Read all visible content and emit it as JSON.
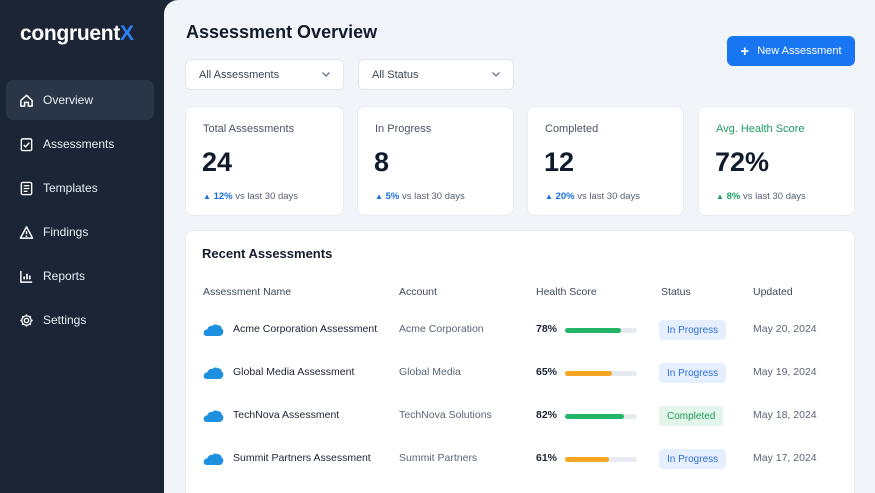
{
  "app": {
    "logo_text": "congruent",
    "logo_accent": "X"
  },
  "sidebar": {
    "items": [
      {
        "label": "Overview",
        "icon": "home-icon",
        "active": true
      },
      {
        "label": "Assessments",
        "icon": "clipboard-check-icon",
        "active": false
      },
      {
        "label": "Templates",
        "icon": "document-icon",
        "active": false
      },
      {
        "label": "Findings",
        "icon": "warning-icon",
        "active": false
      },
      {
        "label": "Reports",
        "icon": "chart-icon",
        "active": false
      },
      {
        "label": "Settings",
        "icon": "gear-icon",
        "active": false
      }
    ]
  },
  "header": {
    "title": "Assessment Overview",
    "new_button_label": "New Assessment"
  },
  "filters": {
    "assessments": "All Assessments",
    "status": "All Status"
  },
  "stats": [
    {
      "label": "Total Assessments",
      "value": "24",
      "delta": "12%",
      "delta_text": "vs last 30 days"
    },
    {
      "label": "In Progress",
      "value": "8",
      "delta": "5%",
      "delta_text": "vs last 30 days"
    },
    {
      "label": "Completed",
      "value": "12",
      "delta": "20%",
      "delta_text": "vs last 30 days"
    },
    {
      "label": "Avg. Health Score",
      "value": "72%",
      "delta": "8%",
      "delta_text": "vs last 30 days"
    }
  ],
  "recent": {
    "title": "Recent Assessments",
    "columns": [
      "Assessment Name",
      "Account",
      "Health Score",
      "Status",
      "Updated"
    ],
    "rows": [
      {
        "name": "Acme Corporation Assessment",
        "account": "Acme Corporation",
        "score": "78%",
        "score_value": 78,
        "status": "In Progress",
        "status_type": "progress",
        "updated": "May 20, 2024",
        "bar_color": "#22b567"
      },
      {
        "name": "Global Media Assessment",
        "account": "Global Media",
        "score": "65%",
        "score_value": 65,
        "status": "In Progress",
        "status_type": "progress",
        "updated": "May 19, 2024",
        "bar_color": "#f5a623"
      },
      {
        "name": "TechNova Assessment",
        "account": "TechNova Solutions",
        "score": "82%",
        "score_value": 82,
        "status": "Completed",
        "status_type": "completed",
        "updated": "May 18, 2024",
        "bar_color": "#22b567"
      },
      {
        "name": "Summit Partners Assessment",
        "account": "Summit Partners",
        "score": "61%",
        "score_value": 61,
        "status": "In Progress",
        "status_type": "progress",
        "updated": "May 17, 2024",
        "bar_color": "#f5a623"
      }
    ]
  },
  "colors": {
    "accent": "#1976f2",
    "sidebar_bg": "#1b2536",
    "success": "#22b567",
    "warning": "#f5a623",
    "salesforce_cloud": "#1f8fe0"
  }
}
